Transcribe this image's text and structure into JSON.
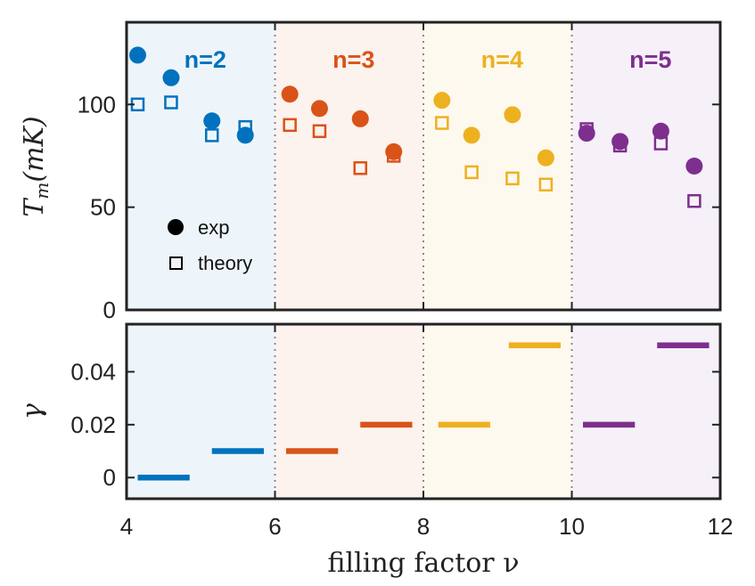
{
  "colors": {
    "n2": "#0072BD",
    "n3": "#D95319",
    "n4": "#EDB120",
    "n5": "#7E2F8E",
    "bg_n2": "#eef5fa",
    "bg_n3": "#fcf2ee",
    "bg_n4": "#fef9ee",
    "bg_n5": "#f6f1f8",
    "axis": "#222222",
    "divider": "#888888"
  },
  "chart_data": [
    {
      "type": "scatter",
      "panel": "top",
      "ylabel": "T_m(mK)",
      "ylabel_main": "T",
      "ylabel_sub": "m",
      "ylabel_paren": "(mK)",
      "xlim": [
        4,
        12
      ],
      "ylim": [
        0,
        140
      ],
      "yticks": [
        0,
        50,
        100
      ],
      "ytick_labels": [
        "0",
        "50",
        "100"
      ],
      "dividers": [
        6,
        8,
        10
      ],
      "groups": [
        {
          "label": "n=2",
          "color_key": "n2",
          "range": [
            4,
            6
          ]
        },
        {
          "label": "n=3",
          "color_key": "n3",
          "range": [
            6,
            8
          ]
        },
        {
          "label": "n=4",
          "color_key": "n4",
          "range": [
            8,
            10
          ]
        },
        {
          "label": "n=5",
          "color_key": "n5",
          "range": [
            10,
            12
          ]
        }
      ],
      "legend": {
        "exp": "exp",
        "theory": "theory",
        "position": "bottom-left"
      },
      "series": [
        {
          "name": "exp",
          "marker": "filled-circle",
          "points": [
            {
              "x": 4.15,
              "y": 124,
              "group": "n2"
            },
            {
              "x": 4.6,
              "y": 113,
              "group": "n2"
            },
            {
              "x": 5.15,
              "y": 92,
              "group": "n2"
            },
            {
              "x": 5.6,
              "y": 85,
              "group": "n2"
            },
            {
              "x": 6.2,
              "y": 105,
              "group": "n3"
            },
            {
              "x": 6.6,
              "y": 98,
              "group": "n3"
            },
            {
              "x": 7.15,
              "y": 93,
              "group": "n3"
            },
            {
              "x": 7.6,
              "y": 77,
              "group": "n3"
            },
            {
              "x": 8.25,
              "y": 102,
              "group": "n4"
            },
            {
              "x": 8.65,
              "y": 85,
              "group": "n4"
            },
            {
              "x": 9.2,
              "y": 95,
              "group": "n4"
            },
            {
              "x": 9.65,
              "y": 74,
              "group": "n4"
            },
            {
              "x": 10.2,
              "y": 86,
              "group": "n5"
            },
            {
              "x": 10.65,
              "y": 82,
              "group": "n5"
            },
            {
              "x": 11.2,
              "y": 87,
              "group": "n5"
            },
            {
              "x": 11.65,
              "y": 70,
              "group": "n5"
            }
          ]
        },
        {
          "name": "theory",
          "marker": "open-square",
          "points": [
            {
              "x": 4.15,
              "y": 100,
              "group": "n2"
            },
            {
              "x": 4.6,
              "y": 101,
              "group": "n2"
            },
            {
              "x": 5.15,
              "y": 85,
              "group": "n2"
            },
            {
              "x": 5.6,
              "y": 89,
              "group": "n2"
            },
            {
              "x": 6.2,
              "y": 90,
              "group": "n3"
            },
            {
              "x": 6.6,
              "y": 87,
              "group": "n3"
            },
            {
              "x": 7.15,
              "y": 69,
              "group": "n3"
            },
            {
              "x": 7.6,
              "y": 75,
              "group": "n3"
            },
            {
              "x": 8.25,
              "y": 91,
              "group": "n4"
            },
            {
              "x": 8.65,
              "y": 67,
              "group": "n4"
            },
            {
              "x": 9.2,
              "y": 64,
              "group": "n4"
            },
            {
              "x": 9.65,
              "y": 61,
              "group": "n4"
            },
            {
              "x": 10.2,
              "y": 88,
              "group": "n5"
            },
            {
              "x": 10.65,
              "y": 80,
              "group": "n5"
            },
            {
              "x": 11.2,
              "y": 81,
              "group": "n5"
            },
            {
              "x": 11.65,
              "y": 53,
              "group": "n5"
            }
          ]
        }
      ]
    },
    {
      "type": "line",
      "panel": "bottom",
      "ylabel": "γ",
      "xlabel": "filling factor ν",
      "xlim": [
        4,
        12
      ],
      "ylim": [
        -0.008,
        0.058
      ],
      "xticks": [
        4,
        6,
        8,
        10,
        12
      ],
      "xtick_labels": [
        "4",
        "6",
        "8",
        "10",
        "12"
      ],
      "yticks": [
        0,
        0.02,
        0.04
      ],
      "ytick_labels": [
        "0",
        "0.02",
        "0.04"
      ],
      "dividers": [
        6,
        8,
        10
      ],
      "segments": [
        {
          "x0": 4.15,
          "x1": 4.85,
          "y": 0.0,
          "group": "n2"
        },
        {
          "x0": 5.15,
          "x1": 5.85,
          "y": 0.01,
          "group": "n2"
        },
        {
          "x0": 6.15,
          "x1": 6.85,
          "y": 0.01,
          "group": "n3"
        },
        {
          "x0": 7.15,
          "x1": 7.85,
          "y": 0.02,
          "group": "n3"
        },
        {
          "x0": 8.2,
          "x1": 8.9,
          "y": 0.02,
          "group": "n4"
        },
        {
          "x0": 9.15,
          "x1": 9.85,
          "y": 0.05,
          "group": "n4"
        },
        {
          "x0": 10.15,
          "x1": 10.85,
          "y": 0.02,
          "group": "n5"
        },
        {
          "x0": 11.15,
          "x1": 11.85,
          "y": 0.05,
          "group": "n5"
        }
      ]
    }
  ]
}
